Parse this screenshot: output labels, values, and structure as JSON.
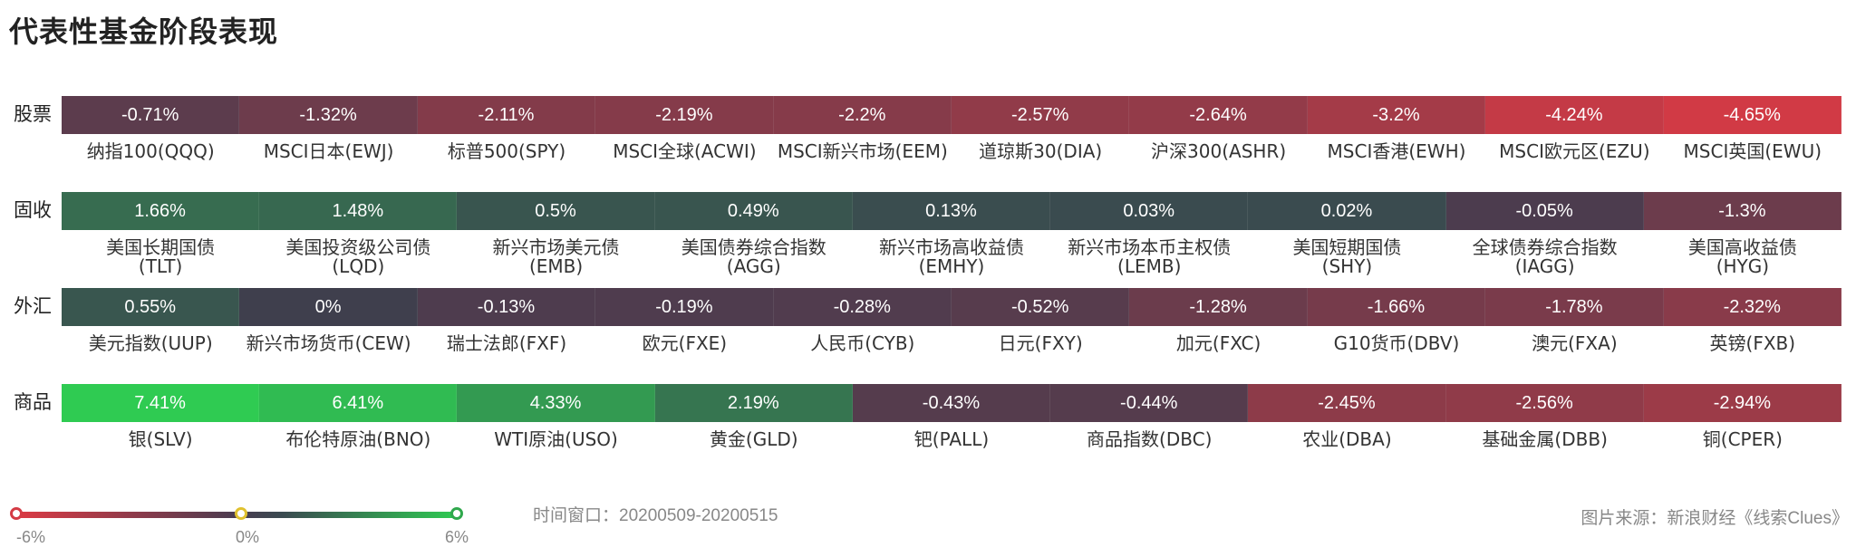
{
  "title": "代表性基金阶段表现",
  "rows": [
    {
      "category": "股票",
      "cells": [
        {
          "value": -0.71,
          "display": "-0.71%",
          "label": "纳指100(QQQ)"
        },
        {
          "value": -1.32,
          "display": "-1.32%",
          "label": "MSCI日本(EWJ)"
        },
        {
          "value": -2.11,
          "display": "-2.11%",
          "label": "标普500(SPY)"
        },
        {
          "value": -2.19,
          "display": "-2.19%",
          "label": "MSCI全球(ACWI)"
        },
        {
          "value": -2.2,
          "display": "-2.2%",
          "label": "MSCI新兴市场(EEM)"
        },
        {
          "value": -2.57,
          "display": "-2.57%",
          "label": "道琼斯30(DIA)"
        },
        {
          "value": -2.64,
          "display": "-2.64%",
          "label": "沪深300(ASHR)"
        },
        {
          "value": -3.2,
          "display": "-3.2%",
          "label": "MSCI香港(EWH)"
        },
        {
          "value": -4.24,
          "display": "-4.24%",
          "label": "MSCI欧元区(EZU)"
        },
        {
          "value": -4.65,
          "display": "-4.65%",
          "label": "MSCI英国(EWU)"
        }
      ]
    },
    {
      "category": "固收",
      "cells": [
        {
          "value": 1.66,
          "display": "1.66%",
          "label": "美国长期国债\n(TLT)"
        },
        {
          "value": 1.48,
          "display": "1.48%",
          "label": "美国投资级公司债\n(LQD)"
        },
        {
          "value": 0.5,
          "display": "0.5%",
          "label": "新兴市场美元债\n(EMB)"
        },
        {
          "value": 0.49,
          "display": "0.49%",
          "label": "美国债券综合指数\n(AGG)"
        },
        {
          "value": 0.13,
          "display": "0.13%",
          "label": "新兴市场高收益债\n(EMHY)"
        },
        {
          "value": 0.03,
          "display": "0.03%",
          "label": "新兴市场本币主权债\n(LEMB)"
        },
        {
          "value": 0.02,
          "display": "0.02%",
          "label": "美国短期国债\n(SHY)"
        },
        {
          "value": -0.05,
          "display": "-0.05%",
          "label": "全球债券综合指数\n(IAGG)"
        },
        {
          "value": -1.3,
          "display": "-1.3%",
          "label": "美国高收益债\n(HYG)"
        }
      ]
    },
    {
      "category": "外汇",
      "cells": [
        {
          "value": 0.55,
          "display": "0.55%",
          "label": "美元指数(UUP)"
        },
        {
          "value": 0,
          "display": "0%",
          "label": "新兴市场货币(CEW)"
        },
        {
          "value": -0.13,
          "display": "-0.13%",
          "label": "瑞士法郎(FXF)"
        },
        {
          "value": -0.19,
          "display": "-0.19%",
          "label": "欧元(FXE)"
        },
        {
          "value": -0.28,
          "display": "-0.28%",
          "label": "人民币(CYB)"
        },
        {
          "value": -0.52,
          "display": "-0.52%",
          "label": "日元(FXY)"
        },
        {
          "value": -1.28,
          "display": "-1.28%",
          "label": "加元(FXC)"
        },
        {
          "value": -1.66,
          "display": "-1.66%",
          "label": "G10货币(DBV)"
        },
        {
          "value": -1.78,
          "display": "-1.78%",
          "label": "澳元(FXA)"
        },
        {
          "value": -2.32,
          "display": "-2.32%",
          "label": "英镑(FXB)"
        }
      ]
    },
    {
      "category": "商品",
      "cells": [
        {
          "value": 7.41,
          "display": "7.41%",
          "label": "银(SLV)"
        },
        {
          "value": 6.41,
          "display": "6.41%",
          "label": "布伦特原油(BNO)"
        },
        {
          "value": 4.33,
          "display": "4.33%",
          "label": "WTI原油(USO)"
        },
        {
          "value": 2.19,
          "display": "2.19%",
          "label": "黄金(GLD)"
        },
        {
          "value": -0.43,
          "display": "-0.43%",
          "label": "钯(PALL)"
        },
        {
          "value": -0.44,
          "display": "-0.44%",
          "label": "商品指数(DBC)"
        },
        {
          "value": -2.45,
          "display": "-2.45%",
          "label": "农业(DBA)"
        },
        {
          "value": -2.56,
          "display": "-2.56%",
          "label": "基础金属(DBB)"
        },
        {
          "value": -2.94,
          "display": "-2.94%",
          "label": "铜(CPER)"
        }
      ]
    }
  ],
  "legend": {
    "min_label": "-6%",
    "mid_label": "0%",
    "max_label": "6%",
    "min": -6,
    "max": 6,
    "colors": {
      "negative": "#dc3a44",
      "neutral": "#3f3f4d",
      "positive": "#2fcb52"
    }
  },
  "time_window": "时间窗口：20200509-20200515",
  "source": "图片来源：新浪财经《线索Clues》",
  "chart_data": {
    "type": "heatmap",
    "title": "代表性基金阶段表现",
    "rows": [
      "股票",
      "固收",
      "外汇",
      "商品"
    ],
    "color_scale": {
      "min": -6,
      "max": 6,
      "unit": "%"
    },
    "series": [
      {
        "name": "股票",
        "categories": [
          "纳指100(QQQ)",
          "MSCI日本(EWJ)",
          "标普500(SPY)",
          "MSCI全球(ACWI)",
          "MSCI新兴市场(EEM)",
          "道琼斯30(DIA)",
          "沪深300(ASHR)",
          "MSCI香港(EWH)",
          "MSCI欧元区(EZU)",
          "MSCI英国(EWU)"
        ],
        "values": [
          -0.71,
          -1.32,
          -2.11,
          -2.19,
          -2.2,
          -2.57,
          -2.64,
          -3.2,
          -4.24,
          -4.65
        ]
      },
      {
        "name": "固收",
        "categories": [
          "美国长期国债(TLT)",
          "美国投资级公司债(LQD)",
          "新兴市场美元债(EMB)",
          "美国债券综合指数(AGG)",
          "新兴市场高收益债(EMHY)",
          "新兴市场本币主权债(LEMB)",
          "美国短期国债(SHY)",
          "全球债券综合指数(IAGG)",
          "美国高收益债(HYG)"
        ],
        "values": [
          1.66,
          1.48,
          0.5,
          0.49,
          0.13,
          0.03,
          0.02,
          -0.05,
          -1.3
        ]
      },
      {
        "name": "外汇",
        "categories": [
          "美元指数(UUP)",
          "新兴市场货币(CEW)",
          "瑞士法郎(FXF)",
          "欧元(FXE)",
          "人民币(CYB)",
          "日元(FXY)",
          "加元(FXC)",
          "G10货币(DBV)",
          "澳元(FXA)",
          "英镑(FXB)"
        ],
        "values": [
          0.55,
          0,
          -0.13,
          -0.19,
          -0.28,
          -0.52,
          -1.28,
          -1.66,
          -1.78,
          -2.32
        ]
      },
      {
        "name": "商品",
        "categories": [
          "银(SLV)",
          "布伦特原油(BNO)",
          "WTI原油(USO)",
          "黄金(GLD)",
          "钯(PALL)",
          "商品指数(DBC)",
          "农业(DBA)",
          "基础金属(DBB)",
          "铜(CPER)"
        ],
        "values": [
          7.41,
          6.41,
          4.33,
          2.19,
          -0.43,
          -0.44,
          -2.45,
          -2.56,
          -2.94
        ]
      }
    ]
  }
}
